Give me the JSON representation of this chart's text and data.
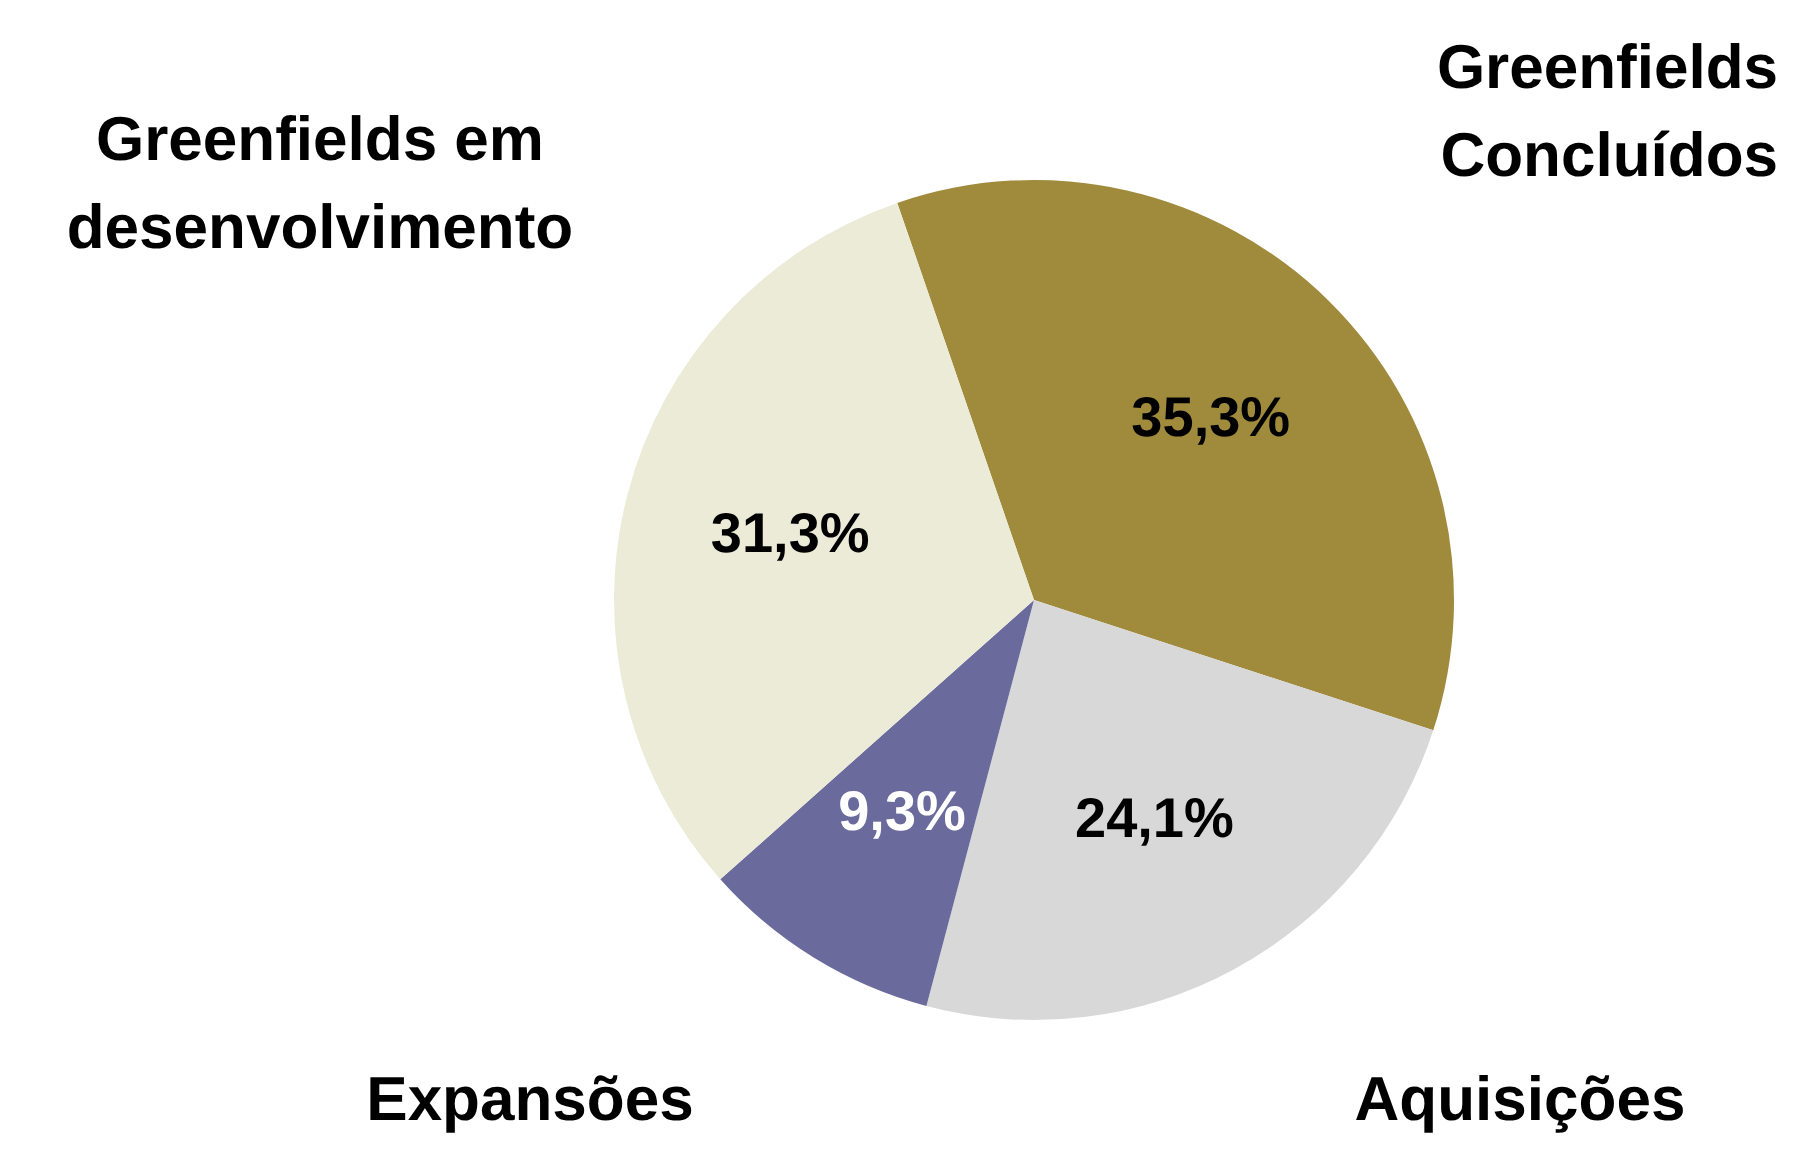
{
  "chart_data": {
    "type": "pie",
    "categories": [
      "Greenfields Concluídos",
      "Aquisições",
      "Expansões",
      "Greenfields em desenvolvimento"
    ],
    "values": [
      35.3,
      24.1,
      9.3,
      31.3
    ],
    "value_labels": [
      "35,3%",
      "24,1%",
      "9,3%",
      "31,3%"
    ],
    "colors": [
      "#a08a3c",
      "#d8d8d8",
      "#6a6a9c",
      "#ecebd8"
    ],
    "legend": false
  }
}
